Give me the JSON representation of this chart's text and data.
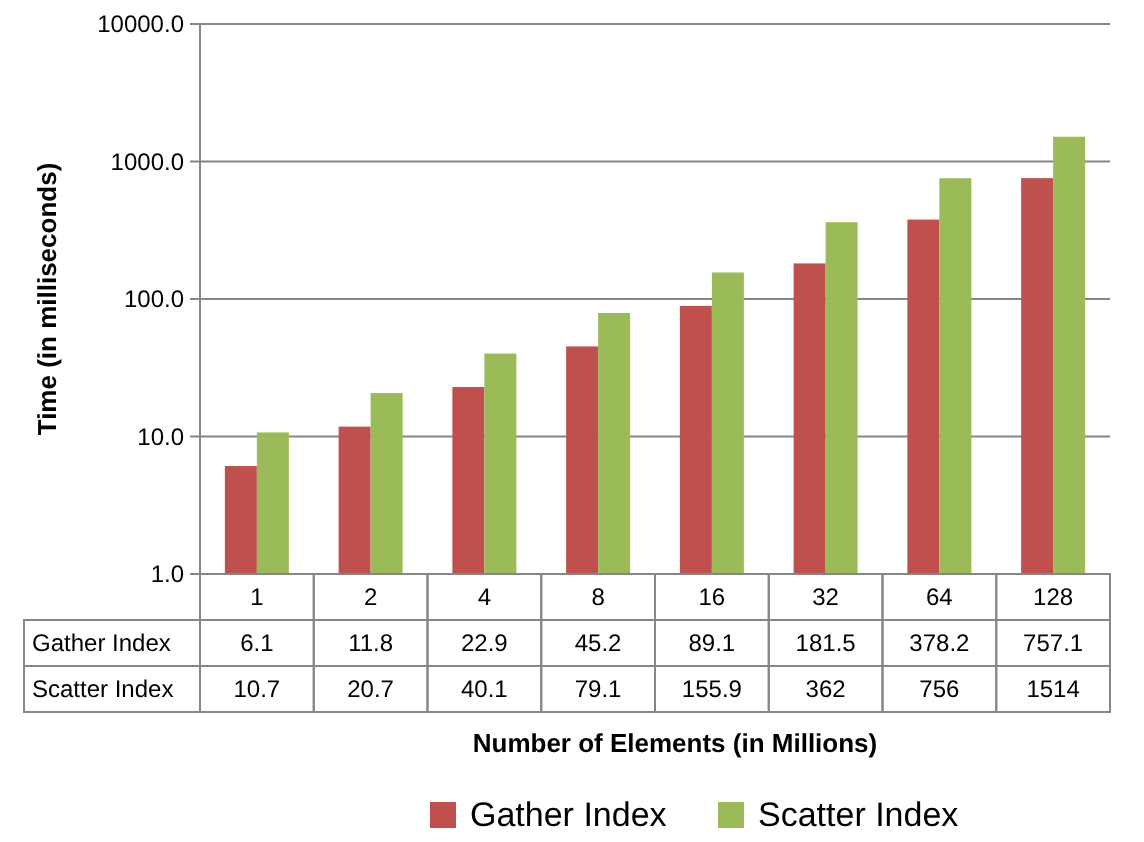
{
  "chart_data": {
    "type": "bar",
    "xlabel": "Number of Elements (in Millions)",
    "ylabel": "Time (in milliseconds)",
    "categories": [
      "1",
      "2",
      "4",
      "8",
      "16",
      "32",
      "64",
      "128"
    ],
    "series": [
      {
        "name": "Gather Index",
        "color": "#c0504d",
        "values": [
          6.1,
          11.8,
          22.9,
          45.2,
          89.1,
          181.5,
          378.2,
          757.1
        ]
      },
      {
        "name": "Scatter Index",
        "color": "#9bbb59",
        "values": [
          10.7,
          20.7,
          40.1,
          79.1,
          155.9,
          362,
          756,
          1514
        ]
      }
    ],
    "log": true,
    "ylim": [
      1,
      10000
    ],
    "yticks": [
      {
        "value": 1,
        "label": "1.0"
      },
      {
        "value": 10,
        "label": "10.0"
      },
      {
        "value": 100,
        "label": "100.0"
      },
      {
        "value": 1000,
        "label": "1000.0"
      },
      {
        "value": 10000,
        "label": "10000.0"
      }
    ],
    "grid": "y",
    "legend": "bottom",
    "data_labels": true
  }
}
